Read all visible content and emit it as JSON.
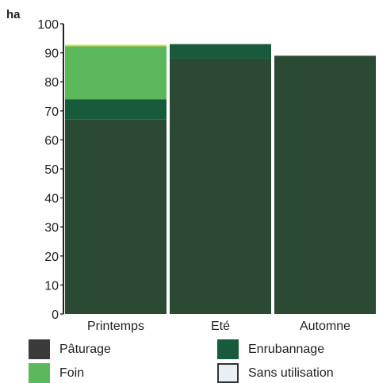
{
  "chart_data": {
    "type": "bar",
    "stacked": true,
    "categories": [
      "Printemps",
      "Eté",
      "Automne"
    ],
    "series": [
      {
        "name": "Pâturage",
        "color": "#2a4a33",
        "values": [
          67,
          88,
          89
        ]
      },
      {
        "name": "Enrubannage",
        "color": "#185a3c",
        "values": [
          7,
          5,
          0
        ]
      },
      {
        "name": "Foin",
        "color": "#5cb85c",
        "values": [
          18.5,
          0,
          0
        ]
      },
      {
        "name": "Sans utilisation",
        "color": "#e8f0f5",
        "values": [
          0,
          0,
          0
        ]
      }
    ],
    "ylabel": "ha",
    "ylim": [
      0,
      100
    ],
    "yticks": [
      0,
      10,
      20,
      30,
      40,
      50,
      60,
      70,
      80,
      90,
      100
    ],
    "grid": false,
    "legend": "bottom"
  },
  "legend": {
    "items": [
      {
        "label": "Pâturage",
        "color": "#3a3a3a"
      },
      {
        "label": "Enrubannage",
        "color": "#185a3c"
      },
      {
        "label": "Foin",
        "color": "#5cb85c"
      },
      {
        "label": "Sans utilisation",
        "color": "#e8f0f5"
      }
    ]
  }
}
